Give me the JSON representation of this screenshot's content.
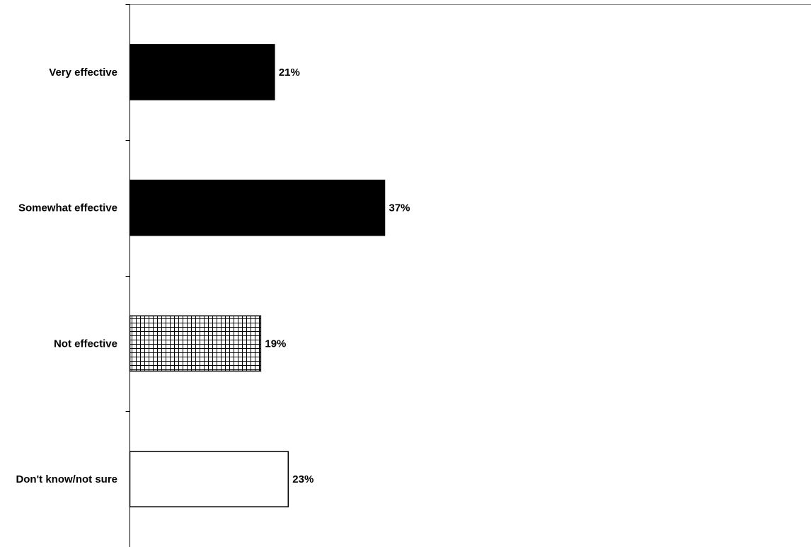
{
  "chart_data": {
    "type": "bar",
    "orientation": "horizontal",
    "categories": [
      "Very effective",
      "Somewhat effective",
      "Not effective",
      "Don't know/not sure"
    ],
    "values": [
      21,
      37,
      19,
      23
    ],
    "value_labels": [
      "21%",
      "37%",
      "19%",
      "23%"
    ],
    "bar_styles": [
      "solid",
      "solid",
      "grid",
      "outline"
    ],
    "title": "",
    "xlabel": "",
    "ylabel": "",
    "xlim": [
      0,
      100
    ],
    "grid": false,
    "legend": "none",
    "colors": {
      "solid_fill": "#000000",
      "outline_fill": "#ffffff",
      "stroke": "#000000",
      "axis": "#000000",
      "top_rule": "#888888"
    }
  }
}
